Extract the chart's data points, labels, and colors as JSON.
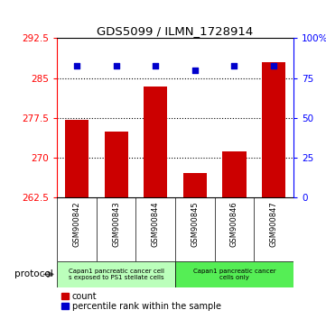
{
  "title": "GDS5099 / ILMN_1728914",
  "samples": [
    "GSM900842",
    "GSM900843",
    "GSM900844",
    "GSM900845",
    "GSM900846",
    "GSM900847"
  ],
  "counts": [
    277.2,
    275.0,
    283.5,
    267.2,
    271.2,
    288.0
  ],
  "percentiles": [
    83,
    83,
    83,
    80,
    83,
    83
  ],
  "ylim_left": [
    262.5,
    292.5
  ],
  "yticks_left": [
    262.5,
    270.0,
    277.5,
    285.0,
    292.5
  ],
  "ylim_right": [
    0,
    100
  ],
  "yticks_right": [
    0,
    25,
    50,
    75,
    100
  ],
  "ytick_labels_right": [
    "0",
    "25",
    "50",
    "75",
    "100%"
  ],
  "bar_color": "#cc0000",
  "dot_color": "#0000cc",
  "bar_bottom": 262.5,
  "dotted_lines": [
    270.0,
    277.5,
    285.0
  ],
  "group1_label": "Capan1 pancreatic cancer cell\ns exposed to PS1 stellate cells",
  "group2_label": "Capan1 pancreatic cancer\ncells only",
  "group1_color": "#bbffbb",
  "group2_color": "#55ee55",
  "legend_label_count": "count",
  "legend_label_pct": "percentile rank within the sample",
  "protocol_label": "protocol",
  "gray_color": "#c8c8c8"
}
